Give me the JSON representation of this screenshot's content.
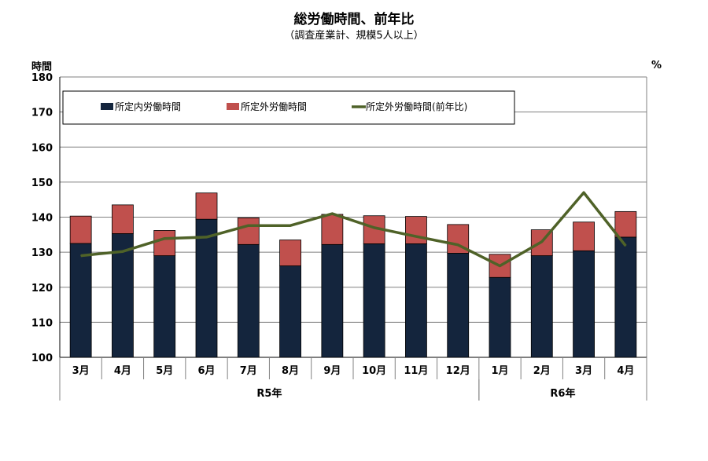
{
  "chart_data": {
    "type": "bar",
    "title": "総労働時間、前年比",
    "subtitle": "（調査産業計、規模5人以上）",
    "ylabel_left": "時間",
    "ylabel_right": "%",
    "ylim": [
      100,
      180
    ],
    "yticks": [
      "100",
      "110",
      "120",
      "130",
      "140",
      "150",
      "160",
      "170",
      "180"
    ],
    "grid": true,
    "legend_position": "top",
    "categories": [
      "3月",
      "4月",
      "5月",
      "6月",
      "7月",
      "8月",
      "9月",
      "10月",
      "11月",
      "12月",
      "1月",
      "2月",
      "3月",
      "4月"
    ],
    "groups": [
      {
        "label": "R5年",
        "count": 10
      },
      {
        "label": "R6年",
        "count": 4
      }
    ],
    "series": [
      {
        "name": "所定内労働時間",
        "type": "bar",
        "color": "#14253d",
        "values": [
          132.5,
          135.3,
          129.0,
          139.4,
          132.2,
          126.1,
          132.2,
          132.4,
          132.4,
          129.7,
          122.8,
          129.0,
          130.4,
          134.3
        ]
      },
      {
        "name": "所定外労働時間",
        "type": "bar-stacked",
        "color": "#c0504d",
        "values": [
          7.8,
          8.2,
          7.2,
          7.5,
          7.6,
          7.4,
          8.6,
          8.0,
          7.8,
          8.2,
          6.6,
          7.4,
          8.2,
          7.3
        ]
      },
      {
        "name": "所定外労働時間(前年比)",
        "type": "line",
        "color": "#4f6228",
        "values": [
          129.0,
          130.2,
          133.9,
          134.3,
          137.6,
          137.6,
          141.0,
          137.0,
          134.5,
          132.1,
          126.1,
          133.0,
          147.0,
          131.8
        ]
      }
    ]
  }
}
